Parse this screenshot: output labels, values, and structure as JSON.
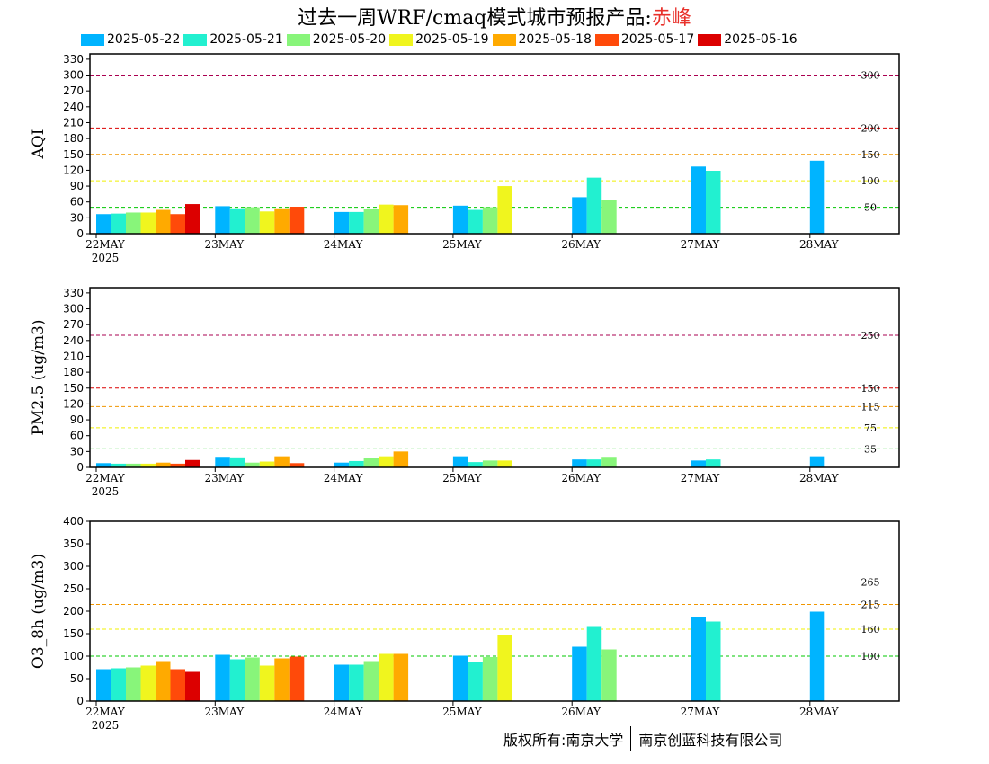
{
  "title": {
    "prefix": "过去一周WRF/cmaq模式城市预报产品:",
    "city": "赤峰"
  },
  "copyright": {
    "left": "版权所有:南京大学",
    "right": "南京创蓝科技有限公司"
  },
  "colors": {
    "series": [
      "#00b4ff",
      "#22f0d0",
      "#88f57a",
      "#f0f51e",
      "#ffaa00",
      "#ff4a0a",
      "#dc0000"
    ],
    "green_line": "#00c800",
    "yellow_line": "#f0f000",
    "orange_line": "#f09600",
    "red_line": "#dc0000",
    "purple_line": "#aa0050"
  },
  "chart_data": [
    {
      "type": "bar",
      "ylabel": "AQI",
      "ylim": [
        0,
        340
      ],
      "yticks": [
        0,
        30,
        60,
        90,
        120,
        150,
        180,
        210,
        240,
        270,
        300,
        330
      ],
      "categories": [
        "22MAY",
        "23MAY",
        "24MAY",
        "25MAY",
        "26MAY",
        "27MAY",
        "28MAY"
      ],
      "year_label": "2025",
      "series": [
        {
          "name": "2025-05-22",
          "values": [
            37,
            52,
            41,
            53,
            69,
            127,
            138
          ]
        },
        {
          "name": "2025-05-21",
          "values": [
            38,
            48,
            41,
            45,
            106,
            119,
            null
          ]
        },
        {
          "name": "2025-05-20",
          "values": [
            40,
            50,
            46,
            50,
            64,
            null,
            null
          ]
        },
        {
          "name": "2025-05-19",
          "values": [
            40,
            42,
            55,
            90,
            null,
            null,
            null
          ]
        },
        {
          "name": "2025-05-18",
          "values": [
            45,
            48,
            54,
            null,
            null,
            null,
            null
          ]
        },
        {
          "name": "2025-05-17",
          "values": [
            37,
            51,
            null,
            null,
            null,
            null,
            null
          ]
        },
        {
          "name": "2025-05-16",
          "values": [
            56,
            null,
            null,
            null,
            null,
            null,
            null
          ]
        }
      ],
      "thresholds": [
        {
          "value": 50,
          "label": "50",
          "color": "green_line"
        },
        {
          "value": 100,
          "label": "100",
          "color": "yellow_line"
        },
        {
          "value": 150,
          "label": "150",
          "color": "orange_line"
        },
        {
          "value": 200,
          "label": "200",
          "color": "red_line"
        },
        {
          "value": 300,
          "label": "300",
          "color": "purple_line"
        }
      ]
    },
    {
      "type": "bar",
      "ylabel": "PM2.5 (ug/m3)",
      "ylim": [
        0,
        340
      ],
      "yticks": [
        0,
        30,
        60,
        90,
        120,
        150,
        180,
        210,
        240,
        270,
        300,
        330
      ],
      "categories": [
        "22MAY",
        "23MAY",
        "24MAY",
        "25MAY",
        "26MAY",
        "27MAY",
        "28MAY"
      ],
      "year_label": "2025",
      "series": [
        {
          "name": "2025-05-22",
          "values": [
            8,
            20,
            9,
            21,
            15,
            13,
            21
          ]
        },
        {
          "name": "2025-05-21",
          "values": [
            7,
            19,
            12,
            10,
            15,
            15,
            null
          ]
        },
        {
          "name": "2025-05-20",
          "values": [
            7,
            9,
            18,
            13,
            20,
            null,
            null
          ]
        },
        {
          "name": "2025-05-19",
          "values": [
            7,
            11,
            21,
            13,
            null,
            null,
            null
          ]
        },
        {
          "name": "2025-05-18",
          "values": [
            9,
            21,
            30,
            null,
            null,
            null,
            null
          ]
        },
        {
          "name": "2025-05-17",
          "values": [
            7,
            8,
            null,
            null,
            null,
            null,
            null
          ]
        },
        {
          "name": "2025-05-16",
          "values": [
            14,
            null,
            null,
            null,
            null,
            null,
            null
          ]
        }
      ],
      "thresholds": [
        {
          "value": 35,
          "label": "35",
          "color": "green_line"
        },
        {
          "value": 75,
          "label": "75",
          "color": "yellow_line"
        },
        {
          "value": 115,
          "label": "115",
          "color": "orange_line"
        },
        {
          "value": 150,
          "label": "150",
          "color": "red_line"
        },
        {
          "value": 250,
          "label": "250",
          "color": "purple_line"
        }
      ]
    },
    {
      "type": "bar",
      "ylabel": "O3_8h (ug/m3)",
      "ylim": [
        0,
        400
      ],
      "yticks": [
        0,
        50,
        100,
        150,
        200,
        250,
        300,
        350,
        400
      ],
      "categories": [
        "22MAY",
        "23MAY",
        "24MAY",
        "25MAY",
        "26MAY",
        "27MAY",
        "28MAY"
      ],
      "year_label": "2025",
      "series": [
        {
          "name": "2025-05-22",
          "values": [
            71,
            103,
            81,
            101,
            121,
            187,
            199
          ]
        },
        {
          "name": "2025-05-21",
          "values": [
            73,
            93,
            81,
            88,
            165,
            177,
            null
          ]
        },
        {
          "name": "2025-05-20",
          "values": [
            75,
            97,
            89,
            98,
            115,
            null,
            null
          ]
        },
        {
          "name": "2025-05-19",
          "values": [
            79,
            79,
            105,
            146,
            null,
            null,
            null
          ]
        },
        {
          "name": "2025-05-18",
          "values": [
            89,
            95,
            105,
            null,
            null,
            null,
            null
          ]
        },
        {
          "name": "2025-05-17",
          "values": [
            71,
            99,
            null,
            null,
            null,
            null,
            null
          ]
        },
        {
          "name": "2025-05-16",
          "values": [
            65,
            null,
            null,
            null,
            null,
            null,
            null
          ]
        }
      ],
      "thresholds": [
        {
          "value": 100,
          "label": "100",
          "color": "green_line"
        },
        {
          "value": 160,
          "label": "160",
          "color": "yellow_line"
        },
        {
          "value": 215,
          "label": "215",
          "color": "orange_line"
        },
        {
          "value": 265,
          "label": "265",
          "color": "red_line"
        }
      ]
    }
  ]
}
